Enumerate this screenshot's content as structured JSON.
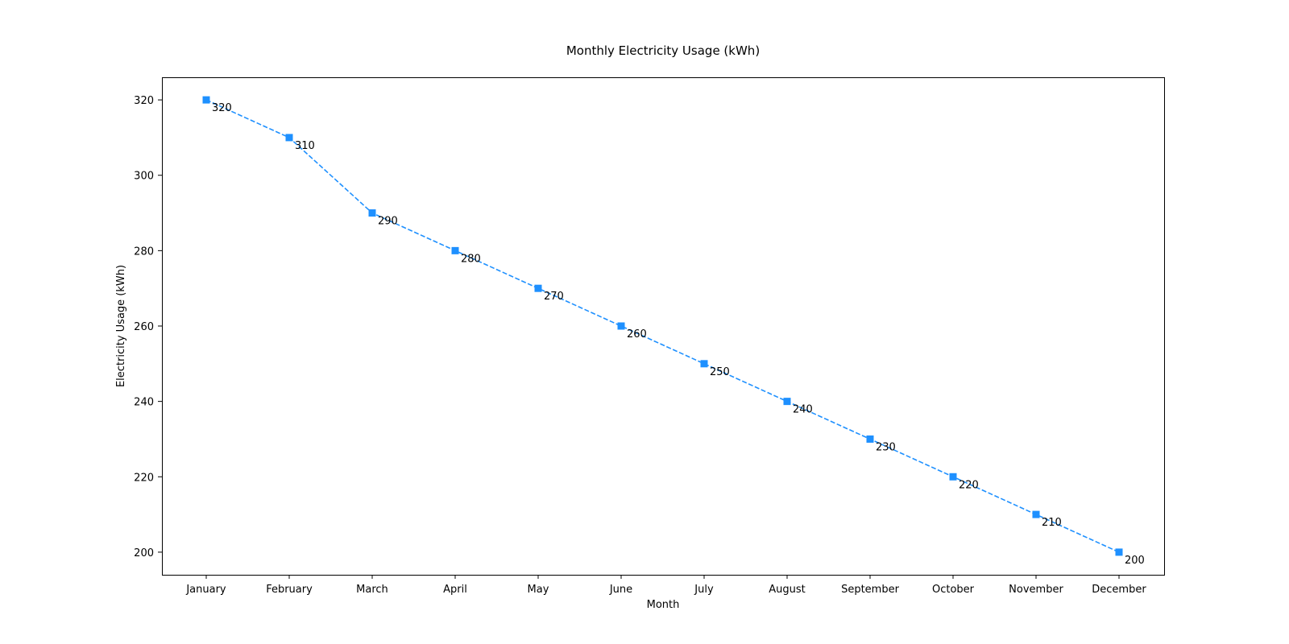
{
  "chart_data": {
    "type": "line",
    "title": "Monthly Electricity Usage (kWh)",
    "xlabel": "Month",
    "ylabel": "Electricity Usage (kWh)",
    "categories": [
      "January",
      "February",
      "March",
      "April",
      "May",
      "June",
      "July",
      "August",
      "September",
      "October",
      "November",
      "December"
    ],
    "series": [
      {
        "name": "Electricity Usage",
        "values": [
          320,
          310,
          290,
          280,
          270,
          260,
          250,
          240,
          230,
          220,
          210,
          200
        ],
        "color": "#1e90ff",
        "line_style": "dashed",
        "marker": "square"
      }
    ],
    "data_labels": [
      "320",
      "310",
      "290",
      "280",
      "270",
      "260",
      "250",
      "240",
      "230",
      "220",
      "210",
      "200"
    ],
    "ylim": [
      194,
      326
    ],
    "yticks": [
      200,
      220,
      240,
      260,
      280,
      300,
      320
    ],
    "ytick_labels": [
      "200",
      "220",
      "240",
      "260",
      "280",
      "300",
      "320"
    ],
    "grid": false,
    "legend": "none"
  }
}
